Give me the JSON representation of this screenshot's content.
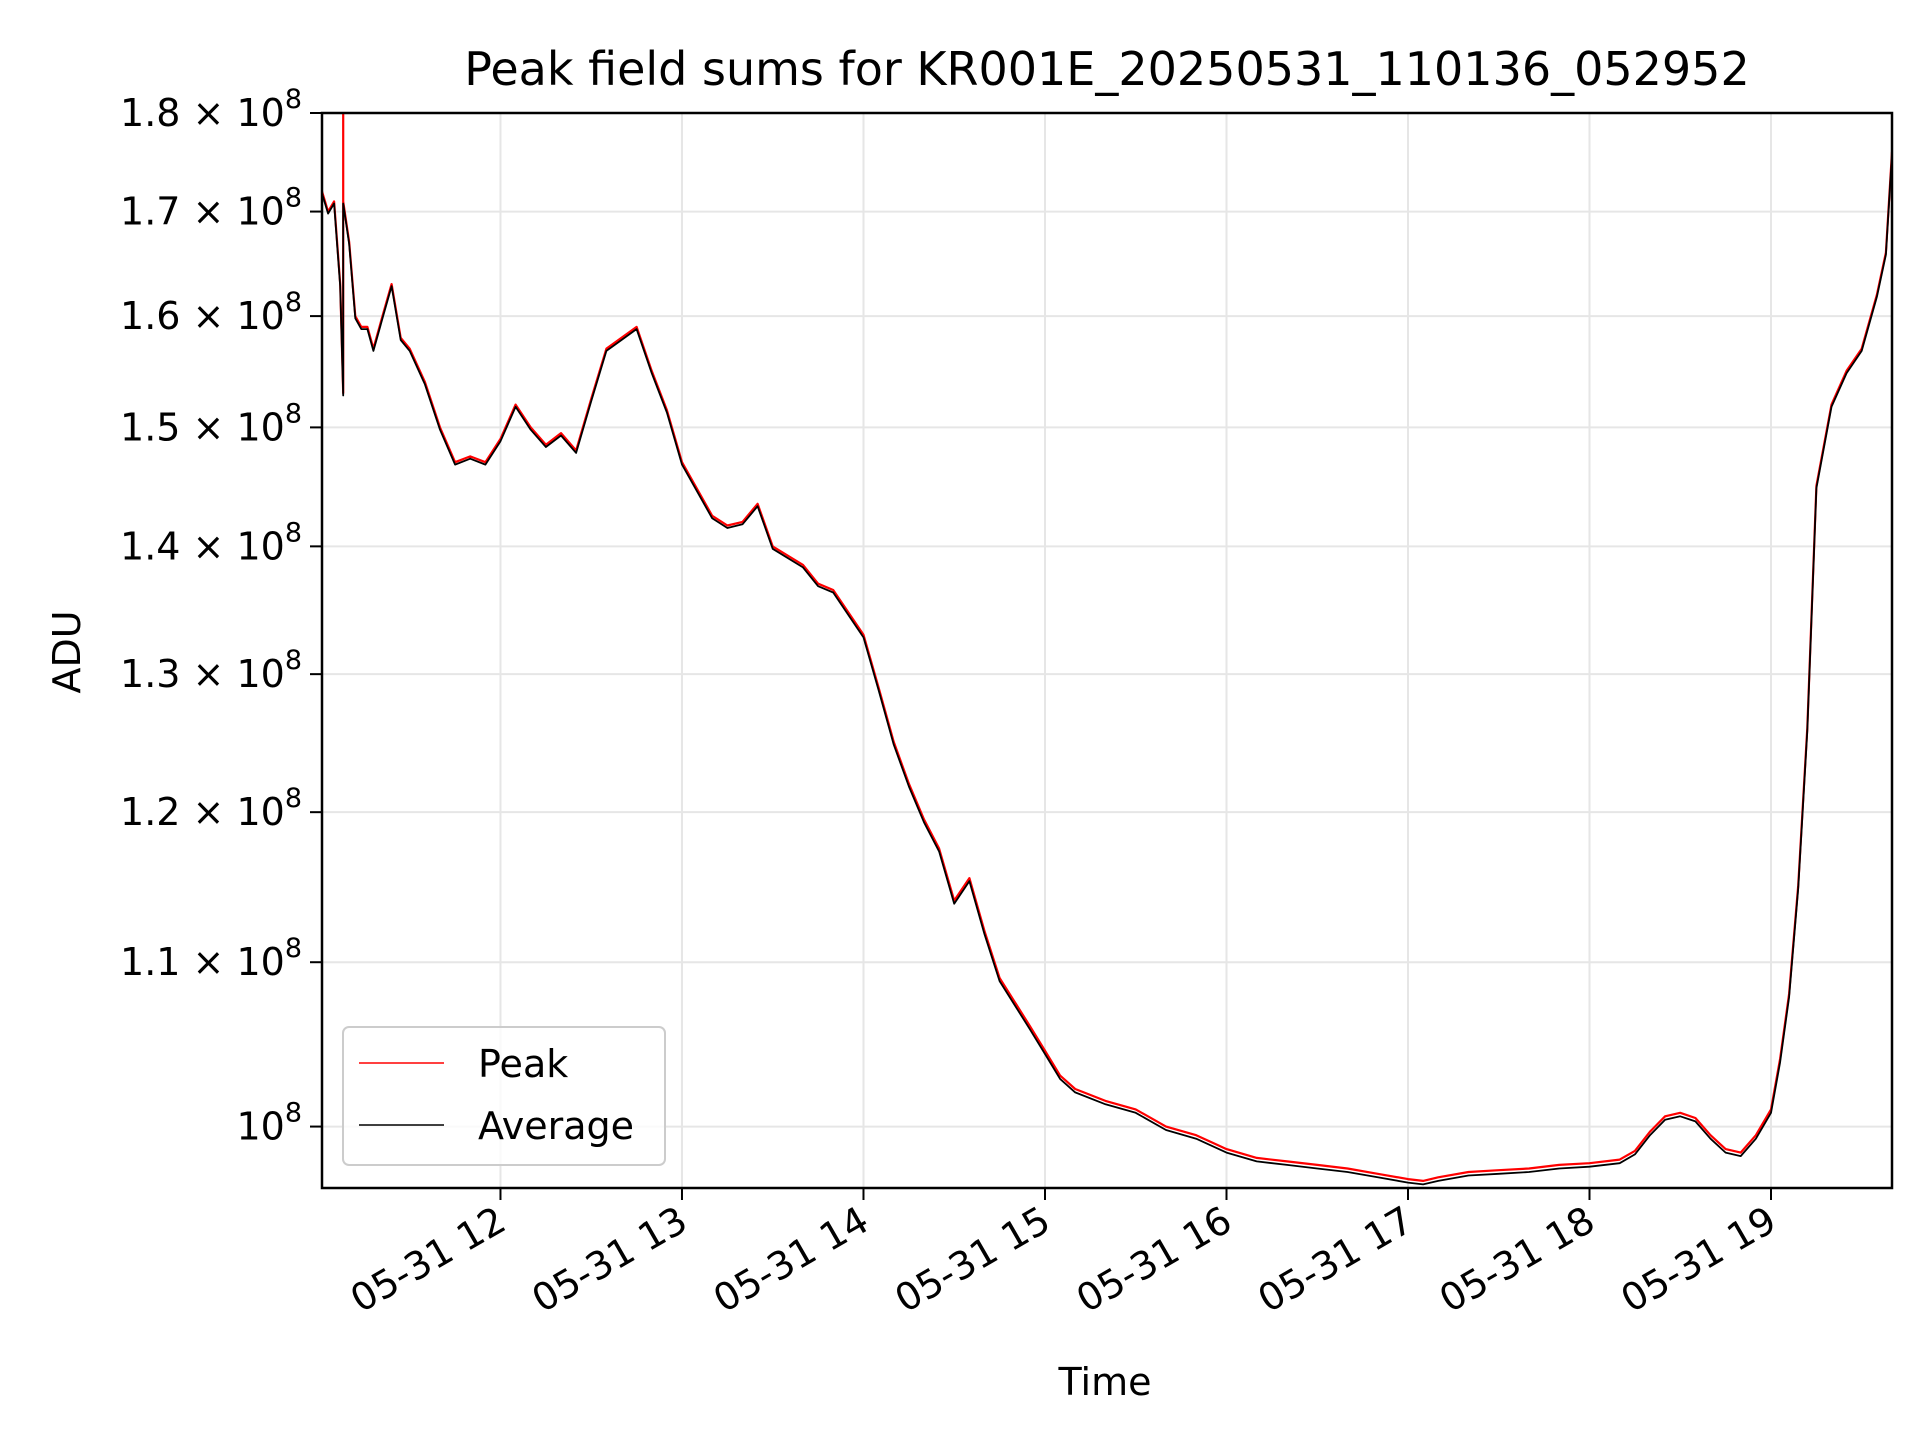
{
  "chart_data": {
    "type": "line",
    "title": "Peak field sums for KR001E_20250531_110136_052952",
    "xlabel": "Time",
    "ylabel": "ADU",
    "x_scale": "time",
    "y_scale": "log",
    "xlim": [
      "2025-05-31 11:01",
      "2025-05-31 19:40"
    ],
    "ylim": [
      96500000,
      180000000
    ],
    "grid": true,
    "legend": "lower-left",
    "x_ticks": [
      {
        "value": "2025-05-31 12:00",
        "label": "05-31 12"
      },
      {
        "value": "2025-05-31 13:00",
        "label": "05-31 13"
      },
      {
        "value": "2025-05-31 14:00",
        "label": "05-31 14"
      },
      {
        "value": "2025-05-31 15:00",
        "label": "05-31 15"
      },
      {
        "value": "2025-05-31 16:00",
        "label": "05-31 16"
      },
      {
        "value": "2025-05-31 17:00",
        "label": "05-31 17"
      },
      {
        "value": "2025-05-31 18:00",
        "label": "05-31 18"
      },
      {
        "value": "2025-05-31 19:00",
        "label": "05-31 19"
      }
    ],
    "y_ticks": [
      {
        "value": 100000000,
        "mantissa": "",
        "label": "10",
        "exp": "8"
      },
      {
        "value": 110000000,
        "mantissa": "1.1 × ",
        "label": "10",
        "exp": "8"
      },
      {
        "value": 120000000,
        "mantissa": "1.2 × ",
        "label": "10",
        "exp": "8"
      },
      {
        "value": 130000000,
        "mantissa": "1.3 × ",
        "label": "10",
        "exp": "8"
      },
      {
        "value": 140000000,
        "mantissa": "1.4 × ",
        "label": "10",
        "exp": "8"
      },
      {
        "value": 150000000,
        "mantissa": "1.5 × ",
        "label": "10",
        "exp": "8"
      },
      {
        "value": 160000000,
        "mantissa": "1.6 × ",
        "label": "10",
        "exp": "8"
      },
      {
        "value": 170000000,
        "mantissa": "1.7 × ",
        "label": "10",
        "exp": "8"
      },
      {
        "value": 180000000,
        "mantissa": "1.8 × ",
        "label": "10",
        "exp": "8"
      }
    ],
    "series": [
      {
        "name": "Peak",
        "color": "#ff0000",
        "x": [
          "2025-05-31 11:01",
          "2025-05-31 11:03",
          "2025-05-31 11:05",
          "2025-05-31 11:07",
          "2025-05-31 11:08",
          "2025-05-31 11:08",
          "2025-05-31 11:08",
          "2025-05-31 11:10",
          "2025-05-31 11:12",
          "2025-05-31 11:14",
          "2025-05-31 11:16",
          "2025-05-31 11:18",
          "2025-05-31 11:21",
          "2025-05-31 11:24",
          "2025-05-31 11:27",
          "2025-05-31 11:30",
          "2025-05-31 11:35",
          "2025-05-31 11:40",
          "2025-05-31 11:45",
          "2025-05-31 11:50",
          "2025-05-31 11:55",
          "2025-05-31 12:00",
          "2025-05-31 12:05",
          "2025-05-31 12:10",
          "2025-05-31 12:15",
          "2025-05-31 12:20",
          "2025-05-31 12:25",
          "2025-05-31 12:30",
          "2025-05-31 12:35",
          "2025-05-31 12:40",
          "2025-05-31 12:45",
          "2025-05-31 12:50",
          "2025-05-31 12:55",
          "2025-05-31 13:00",
          "2025-05-31 13:10",
          "2025-05-31 13:15",
          "2025-05-31 13:20",
          "2025-05-31 13:25",
          "2025-05-31 13:30",
          "2025-05-31 13:40",
          "2025-05-31 13:45",
          "2025-05-31 13:50",
          "2025-05-31 14:00",
          "2025-05-31 14:05",
          "2025-05-31 14:10",
          "2025-05-31 14:15",
          "2025-05-31 14:20",
          "2025-05-31 14:25",
          "2025-05-31 14:30",
          "2025-05-31 14:35",
          "2025-05-31 14:40",
          "2025-05-31 14:45",
          "2025-05-31 14:50",
          "2025-05-31 14:55",
          "2025-05-31 15:00",
          "2025-05-31 15:05",
          "2025-05-31 15:10",
          "2025-05-31 15:20",
          "2025-05-31 15:30",
          "2025-05-31 15:40",
          "2025-05-31 15:50",
          "2025-05-31 16:00",
          "2025-05-31 16:10",
          "2025-05-31 16:20",
          "2025-05-31 16:30",
          "2025-05-31 16:40",
          "2025-05-31 16:50",
          "2025-05-31 17:00",
          "2025-05-31 17:05",
          "2025-05-31 17:10",
          "2025-05-31 17:20",
          "2025-05-31 17:30",
          "2025-05-31 17:40",
          "2025-05-31 17:50",
          "2025-05-31 18:00",
          "2025-05-31 18:10",
          "2025-05-31 18:15",
          "2025-05-31 18:20",
          "2025-05-31 18:25",
          "2025-05-31 18:30",
          "2025-05-31 18:35",
          "2025-05-31 18:40",
          "2025-05-31 18:45",
          "2025-05-31 18:50",
          "2025-05-31 18:55",
          "2025-05-31 19:00",
          "2025-05-31 19:03",
          "2025-05-31 19:06",
          "2025-05-31 19:09",
          "2025-05-31 19:12",
          "2025-05-31 19:15",
          "2025-05-31 19:20",
          "2025-05-31 19:25",
          "2025-05-31 19:30",
          "2025-05-31 19:35",
          "2025-05-31 19:38",
          "2025-05-31 19:40"
        ],
        "values": [
          172000000,
          170000000,
          171000000,
          163000000,
          153000000,
          185000000,
          171000000,
          167000000,
          160000000,
          159000000,
          159000000,
          157000000,
          160000000,
          163000000,
          158000000,
          157000000,
          154000000,
          150000000,
          147000000,
          147500000,
          147000000,
          149000000,
          152000000,
          150000000,
          148500000,
          149500000,
          148000000,
          152500000,
          157000000,
          158000000,
          159000000,
          155000000,
          151500000,
          147000000,
          142500000,
          141700000,
          142000000,
          143500000,
          140000000,
          138500000,
          137000000,
          136500000,
          133000000,
          129000000,
          125000000,
          122000000,
          119500000,
          117500000,
          114000000,
          115500000,
          112000000,
          109000000,
          107500000,
          106000000,
          104500000,
          103000000,
          102200000,
          101500000,
          101000000,
          100000000,
          99500000,
          98700000,
          98200000,
          98000000,
          97800000,
          97600000,
          97300000,
          97000000,
          96900000,
          97100000,
          97400000,
          97500000,
          97600000,
          97800000,
          97900000,
          98100000,
          98600000,
          99700000,
          100600000,
          100800000,
          100500000,
          99500000,
          98700000,
          98500000,
          99500000,
          101000000,
          104000000,
          108000000,
          115000000,
          126000000,
          145000000,
          152000000,
          155000000,
          157000000,
          162000000,
          166000000,
          176000000
        ],
        "style": "solid"
      },
      {
        "name": "Average",
        "color": "#000000",
        "x": [
          "2025-05-31 11:01",
          "2025-05-31 11:03",
          "2025-05-31 11:05",
          "2025-05-31 11:07",
          "2025-05-31 11:08",
          "2025-05-31 11:08",
          "2025-05-31 11:08",
          "2025-05-31 11:10",
          "2025-05-31 11:12",
          "2025-05-31 11:14",
          "2025-05-31 11:16",
          "2025-05-31 11:18",
          "2025-05-31 11:21",
          "2025-05-31 11:24",
          "2025-05-31 11:27",
          "2025-05-31 11:30",
          "2025-05-31 11:35",
          "2025-05-31 11:40",
          "2025-05-31 11:45",
          "2025-05-31 11:50",
          "2025-05-31 11:55",
          "2025-05-31 12:00",
          "2025-05-31 12:05",
          "2025-05-31 12:10",
          "2025-05-31 12:15",
          "2025-05-31 12:20",
          "2025-05-31 12:25",
          "2025-05-31 12:30",
          "2025-05-31 12:35",
          "2025-05-31 12:40",
          "2025-05-31 12:45",
          "2025-05-31 12:50",
          "2025-05-31 12:55",
          "2025-05-31 13:00",
          "2025-05-31 13:10",
          "2025-05-31 13:15",
          "2025-05-31 13:20",
          "2025-05-31 13:25",
          "2025-05-31 13:30",
          "2025-05-31 13:40",
          "2025-05-31 13:45",
          "2025-05-31 13:50",
          "2025-05-31 14:00",
          "2025-05-31 14:05",
          "2025-05-31 14:10",
          "2025-05-31 14:15",
          "2025-05-31 14:20",
          "2025-05-31 14:25",
          "2025-05-31 14:30",
          "2025-05-31 14:35",
          "2025-05-31 14:40",
          "2025-05-31 14:45",
          "2025-05-31 14:50",
          "2025-05-31 14:55",
          "2025-05-31 15:00",
          "2025-05-31 15:05",
          "2025-05-31 15:10",
          "2025-05-31 15:20",
          "2025-05-31 15:30",
          "2025-05-31 15:40",
          "2025-05-31 15:50",
          "2025-05-31 16:00",
          "2025-05-31 16:10",
          "2025-05-31 16:20",
          "2025-05-31 16:30",
          "2025-05-31 16:40",
          "2025-05-31 16:50",
          "2025-05-31 17:00",
          "2025-05-31 17:05",
          "2025-05-31 17:10",
          "2025-05-31 17:20",
          "2025-05-31 17:30",
          "2025-05-31 17:40",
          "2025-05-31 17:50",
          "2025-05-31 18:00",
          "2025-05-31 18:10",
          "2025-05-31 18:15",
          "2025-05-31 18:20",
          "2025-05-31 18:25",
          "2025-05-31 18:30",
          "2025-05-31 18:35",
          "2025-05-31 18:40",
          "2025-05-31 18:45",
          "2025-05-31 18:50",
          "2025-05-31 18:55",
          "2025-05-31 19:00",
          "2025-05-31 19:03",
          "2025-05-31 19:06",
          "2025-05-31 19:09",
          "2025-05-31 19:12",
          "2025-05-31 19:15",
          "2025-05-31 19:20",
          "2025-05-31 19:25",
          "2025-05-31 19:30",
          "2025-05-31 19:35",
          "2025-05-31 19:38",
          "2025-05-31 19:40"
        ],
        "values": [
          171800000,
          169800000,
          170800000,
          162800000,
          152800000,
          168000000,
          170800000,
          166800000,
          159800000,
          158800000,
          158800000,
          156800000,
          159800000,
          162800000,
          157800000,
          156800000,
          153800000,
          149800000,
          146800000,
          147300000,
          146800000,
          148800000,
          151800000,
          149800000,
          148300000,
          149300000,
          147800000,
          152300000,
          156800000,
          157800000,
          158800000,
          154800000,
          151300000,
          146800000,
          142300000,
          141500000,
          141800000,
          143300000,
          139800000,
          138300000,
          136800000,
          136300000,
          132800000,
          128800000,
          124800000,
          121800000,
          119300000,
          117300000,
          113800000,
          115300000,
          111800000,
          108800000,
          107300000,
          105800000,
          104300000,
          102800000,
          102000000,
          101300000,
          100800000,
          99800000,
          99300000,
          98500000,
          98000000,
          97800000,
          97600000,
          97400000,
          97100000,
          96800000,
          96700000,
          96900000,
          97200000,
          97300000,
          97400000,
          97600000,
          97700000,
          97900000,
          98400000,
          99500000,
          100400000,
          100600000,
          100300000,
          99300000,
          98500000,
          98300000,
          99300000,
          100800000,
          103800000,
          107800000,
          114800000,
          125800000,
          144800000,
          151800000,
          154800000,
          156800000,
          161800000,
          165800000,
          175800000
        ],
        "style": "solid"
      }
    ]
  }
}
